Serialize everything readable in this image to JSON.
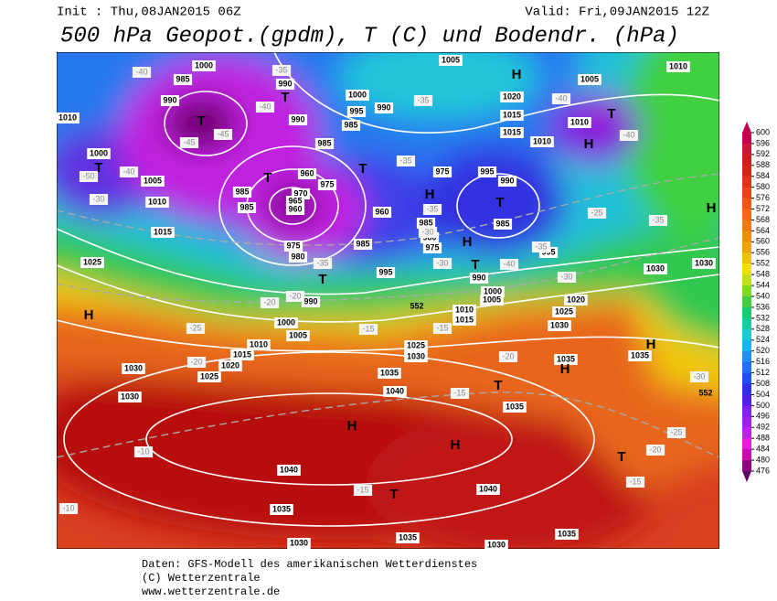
{
  "header": {
    "init": "Init : Thu,08JAN2015 06Z",
    "valid": "Valid: Fri,09JAN2015 12Z",
    "title": "500 hPa Geopot.(gpdm), T (C) und Bodendr. (hPa)"
  },
  "map": {
    "pressure_centers": [
      "H",
      "H",
      "H",
      "H",
      "H",
      "H",
      "H",
      "H",
      "H",
      "H",
      "T",
      "T",
      "T",
      "T",
      "T",
      "T",
      "T",
      "T",
      "T",
      "T",
      "T",
      "T"
    ],
    "pressure_labels": [
      "1000",
      "985",
      "990",
      "1010",
      "1000",
      "1005",
      "1010",
      "1015",
      "1025",
      "990",
      "990",
      "960",
      "975",
      "970",
      "965",
      "960",
      "985",
      "985",
      "975",
      "980",
      "985",
      "960",
      "995",
      "990",
      "1000",
      "1005",
      "1010",
      "1015",
      "1020",
      "1025",
      "1030",
      "1030",
      "1035",
      "1040",
      "1040",
      "1035",
      "1030",
      "1035",
      "1040",
      "1035",
      "1035",
      "1030",
      "1025",
      "1030",
      "1010",
      "1015",
      "1000",
      "1005",
      "990",
      "1020",
      "1025",
      "1030",
      "1035",
      "1035",
      "1030",
      "1030",
      "1020",
      "1015",
      "1010",
      "1010",
      "1005",
      "1010",
      "1005",
      "1015",
      "995",
      "990",
      "985",
      "995",
      "975",
      "980",
      "985",
      "975",
      "985",
      "985",
      "1000",
      "995",
      "990"
    ],
    "temperature_labels": [
      "-40",
      "-40",
      "-40",
      "-40",
      "-40",
      "-40",
      "-45",
      "-45",
      "-35",
      "-35",
      "-35",
      "-35",
      "-35",
      "-35",
      "-35",
      "-30",
      "-30",
      "-30",
      "-30",
      "-30",
      "-25",
      "-25",
      "-25",
      "-20",
      "-20",
      "-20",
      "-20",
      "-20",
      "-15",
      "-15",
      "-15",
      "-15",
      "-15",
      "-10",
      "-10",
      "-50"
    ],
    "contour_labels": [
      "552",
      "552"
    ]
  },
  "colorbar": {
    "levels": [
      600,
      596,
      592,
      588,
      584,
      580,
      576,
      572,
      568,
      564,
      560,
      556,
      552,
      548,
      544,
      540,
      536,
      532,
      528,
      524,
      520,
      516,
      512,
      508,
      504,
      500,
      496,
      492,
      488,
      484,
      480,
      476
    ],
    "colors": [
      "#c00050",
      "#c81838",
      "#c82020",
      "#d02818",
      "#d83818",
      "#e04818",
      "#e85818",
      "#f06818",
      "#f07818",
      "#f08c10",
      "#f0a010",
      "#f0c010",
      "#f0e000",
      "#c0e020",
      "#80d820",
      "#40d040",
      "#20c870",
      "#20c8a0",
      "#20c8d0",
      "#20b0f0",
      "#2090f0",
      "#2070f0",
      "#2050e8",
      "#3030e0",
      "#5020e0",
      "#8020e0",
      "#a020e0",
      "#c020e0",
      "#e020e0",
      "#c010b0",
      "#900080",
      "#600060"
    ]
  },
  "footer": {
    "line1": "Daten: GFS-Modell des amerikanischen Wetterdienstes",
    "line2": "(C) Wetterzentrale",
    "line3": "www.wetterzentrale.de"
  }
}
